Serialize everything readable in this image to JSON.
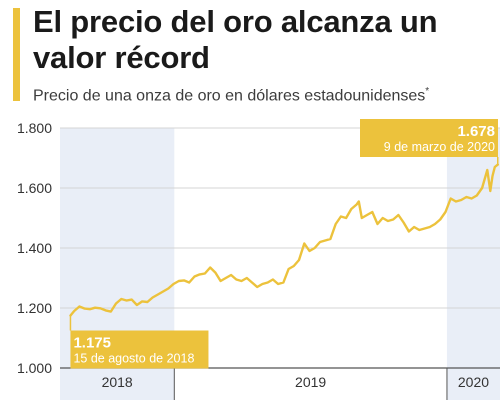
{
  "header": {
    "title": "El precio del oro alcanza un valor récord",
    "subtitle": "Precio de una onza de oro en dólares estadounidenses",
    "subtitle_mark": "*"
  },
  "colors": {
    "accent": "#ecc23c",
    "line": "#ecc23c",
    "shade": "#e9eef7",
    "grid": "#d4d4d4",
    "axis": "#555555"
  },
  "chart_data": {
    "type": "line",
    "title": "El precio del oro alcanza un valor récord",
    "subtitle": "Precio de una onza de oro en dólares estadounidenses",
    "xlabel": "",
    "ylabel": "",
    "xlim": [
      "2018-08-01",
      "2020-03-12"
    ],
    "ylim": [
      1000,
      1800
    ],
    "y_ticks": [
      1000,
      1200,
      1400,
      1600,
      1800
    ],
    "y_tick_labels": [
      "1.000",
      "1.200",
      "1.400",
      "1.600",
      "1.800"
    ],
    "x_ticks": [
      {
        "label": "2018",
        "start": "2018-08-01",
        "end": "2018-12-31"
      },
      {
        "label": "2019",
        "start": "2019-01-01",
        "end": "2019-12-31"
      },
      {
        "label": "2020",
        "start": "2020-01-01",
        "end": "2020-03-12"
      }
    ],
    "shaded_periods": [
      {
        "start": "2018-08-01",
        "end": "2018-12-31"
      },
      {
        "start": "2020-01-01",
        "end": "2020-03-12"
      }
    ],
    "grid": true,
    "legend": "none",
    "series": [
      {
        "points": [
          [
            "2018-08-15",
            1175
          ],
          [
            "2018-08-20",
            1190
          ],
          [
            "2018-08-27",
            1205
          ],
          [
            "2018-09-03",
            1198
          ],
          [
            "2018-09-10",
            1196
          ],
          [
            "2018-09-17",
            1201
          ],
          [
            "2018-09-24",
            1199
          ],
          [
            "2018-10-01",
            1192
          ],
          [
            "2018-10-08",
            1188
          ],
          [
            "2018-10-15",
            1215
          ],
          [
            "2018-10-22",
            1230
          ],
          [
            "2018-10-29",
            1225
          ],
          [
            "2018-11-05",
            1228
          ],
          [
            "2018-11-12",
            1210
          ],
          [
            "2018-11-19",
            1222
          ],
          [
            "2018-11-26",
            1220
          ],
          [
            "2018-12-03",
            1235
          ],
          [
            "2018-12-10",
            1245
          ],
          [
            "2018-12-17",
            1255
          ],
          [
            "2018-12-24",
            1265
          ],
          [
            "2018-12-31",
            1280
          ],
          [
            "2019-01-07",
            1290
          ],
          [
            "2019-01-14",
            1292
          ],
          [
            "2019-01-21",
            1285
          ],
          [
            "2019-01-28",
            1305
          ],
          [
            "2019-02-04",
            1312
          ],
          [
            "2019-02-11",
            1315
          ],
          [
            "2019-02-18",
            1335
          ],
          [
            "2019-02-25",
            1318
          ],
          [
            "2019-03-04",
            1290
          ],
          [
            "2019-03-11",
            1300
          ],
          [
            "2019-03-18",
            1310
          ],
          [
            "2019-03-25",
            1295
          ],
          [
            "2019-04-01",
            1290
          ],
          [
            "2019-04-08",
            1300
          ],
          [
            "2019-04-15",
            1285
          ],
          [
            "2019-04-22",
            1270
          ],
          [
            "2019-04-29",
            1280
          ],
          [
            "2019-05-06",
            1285
          ],
          [
            "2019-05-13",
            1295
          ],
          [
            "2019-05-20",
            1280
          ],
          [
            "2019-05-27",
            1285
          ],
          [
            "2019-06-03",
            1330
          ],
          [
            "2019-06-10",
            1340
          ],
          [
            "2019-06-17",
            1360
          ],
          [
            "2019-06-24",
            1415
          ],
          [
            "2019-07-01",
            1390
          ],
          [
            "2019-07-08",
            1400
          ],
          [
            "2019-07-15",
            1420
          ],
          [
            "2019-07-22",
            1425
          ],
          [
            "2019-07-29",
            1430
          ],
          [
            "2019-08-05",
            1480
          ],
          [
            "2019-08-12",
            1505
          ],
          [
            "2019-08-19",
            1500
          ],
          [
            "2019-08-26",
            1530
          ],
          [
            "2019-09-02",
            1545
          ],
          [
            "2019-09-05",
            1555
          ],
          [
            "2019-09-09",
            1500
          ],
          [
            "2019-09-16",
            1510
          ],
          [
            "2019-09-23",
            1520
          ],
          [
            "2019-09-30",
            1480
          ],
          [
            "2019-10-07",
            1500
          ],
          [
            "2019-10-14",
            1490
          ],
          [
            "2019-10-21",
            1495
          ],
          [
            "2019-10-28",
            1510
          ],
          [
            "2019-11-04",
            1485
          ],
          [
            "2019-11-11",
            1455
          ],
          [
            "2019-11-18",
            1470
          ],
          [
            "2019-11-25",
            1460
          ],
          [
            "2019-12-02",
            1465
          ],
          [
            "2019-12-09",
            1470
          ],
          [
            "2019-12-16",
            1480
          ],
          [
            "2019-12-23",
            1495
          ],
          [
            "2019-12-30",
            1520
          ],
          [
            "2020-01-06",
            1565
          ],
          [
            "2020-01-13",
            1555
          ],
          [
            "2020-01-20",
            1560
          ],
          [
            "2020-01-27",
            1570
          ],
          [
            "2020-02-03",
            1565
          ],
          [
            "2020-02-10",
            1575
          ],
          [
            "2020-02-17",
            1600
          ],
          [
            "2020-02-24",
            1660
          ],
          [
            "2020-02-28",
            1590
          ],
          [
            "2020-03-02",
            1640
          ],
          [
            "2020-03-05",
            1670
          ],
          [
            "2020-03-09",
            1678
          ]
        ]
      }
    ],
    "annotations": [
      {
        "value": "1.175",
        "label": "15 de agosto de 2018",
        "x": "2018-08-15",
        "y": 1175,
        "anchor": "left"
      },
      {
        "value": "1.678",
        "label": "9 de marzo de 2020",
        "x": "2020-03-09",
        "y": 1678,
        "anchor": "right"
      }
    ]
  }
}
